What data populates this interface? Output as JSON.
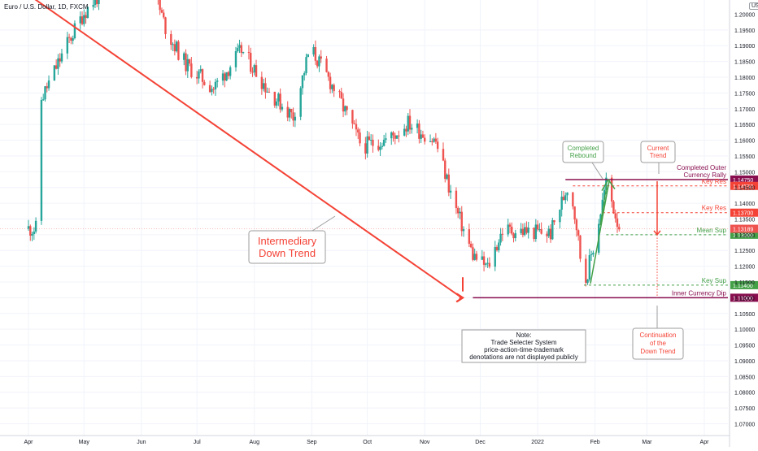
{
  "header": {
    "symbol_title": "Euro / U.S. Dollar, 1D, FXCM",
    "currency": "USD"
  },
  "chart_data": {
    "type": "candlestick",
    "ylim": [
      1.066,
      1.2045
    ],
    "y_ticks": [
      "1.19500",
      "1.19000",
      "1.18500",
      "1.18000",
      "1.17500",
      "1.17000",
      "1.16500",
      "1.16000",
      "1.15500",
      "1.15000",
      "1.14500",
      "1.14000",
      "1.13500",
      "1.13000",
      "1.12500",
      "1.12000",
      "1.11500",
      "1.11000",
      "1.10500",
      "1.10000",
      "1.09500",
      "1.09000",
      "1.08500",
      "1.08000",
      "1.07500",
      "1.07000"
    ],
    "y_tick_values": [
      1.195,
      1.19,
      1.185,
      1.18,
      1.175,
      1.17,
      1.165,
      1.16,
      1.155,
      1.15,
      1.145,
      1.14,
      1.135,
      1.13,
      1.125,
      1.12,
      1.115,
      1.11,
      1.105,
      1.1,
      1.095,
      1.09,
      1.085,
      1.08,
      1.075,
      1.07
    ],
    "top_tick": "1.20000",
    "x_ticks": [
      "Apr",
      "May",
      "Jun",
      "Jul",
      "Aug",
      "Sep",
      "Oct",
      "Nov",
      "Dec",
      "2022",
      "Feb",
      "Mar",
      "Apr"
    ],
    "x_tick_days": [
      0,
      30,
      61,
      91,
      122,
      153,
      183,
      214,
      244,
      275,
      306,
      334,
      365
    ],
    "last_day": 320,
    "horizontal_levels": [
      {
        "name": "completed-outer-rally",
        "price": 1.1475,
        "label": "Completed Outer\nCurrency Rally",
        "badge": "1.14750",
        "color": "#880e4f",
        "style": "solid"
      },
      {
        "name": "key-res-upper",
        "price": 1.1455,
        "label": "Key Res",
        "badge": "1.14550",
        "color": "#f44336",
        "style": "dashed"
      },
      {
        "name": "key-res",
        "price": 1.137,
        "label": "Key Res",
        "badge": "1.13700",
        "color": "#f44336",
        "style": "dashed"
      },
      {
        "name": "mean-sup",
        "price": 1.13,
        "label": "Mean Sup",
        "badge": "1.13000",
        "color": "#43a047",
        "style": "dashed"
      },
      {
        "name": "key-sup",
        "price": 1.114,
        "label": "Key Sup",
        "badge": "1.11400",
        "color": "#43a047",
        "style": "dashed"
      },
      {
        "name": "inner-currency-dip",
        "price": 1.11,
        "label": "Inner Currency Dip",
        "badge": "1.11000",
        "color": "#880e4f",
        "style": "solid"
      }
    ],
    "last_price": {
      "price": 1.13189,
      "badge": "1.13189",
      "color": "#ef5350"
    },
    "annotations": {
      "intermediary": "Intermediary\nDown Trend",
      "completed_rebound": "Completed\nRebound",
      "current_trend": "Current\nTrend",
      "continuation": "Continuation\nof the\nDown Trend",
      "note": "Note:\nTrade Selecter System\nprice-action-time-trademark\ndenotations are not displayed publicly"
    },
    "key_points": [
      {
        "day": 5,
        "price": 1.1705
      },
      {
        "day": 20,
        "price": 1.1895
      },
      {
        "day": 30,
        "price": 1.2005
      },
      {
        "day": 45,
        "price": 1.211
      },
      {
        "day": 65,
        "price": 1.212
      },
      {
        "day": 75,
        "price": 1.194
      },
      {
        "day": 85,
        "price": 1.184
      },
      {
        "day": 100,
        "price": 1.1765
      },
      {
        "day": 115,
        "price": 1.1885
      },
      {
        "day": 130,
        "price": 1.1755
      },
      {
        "day": 143,
        "price": 1.1675
      },
      {
        "day": 152,
        "price": 1.1895
      },
      {
        "day": 165,
        "price": 1.1765
      },
      {
        "day": 180,
        "price": 1.158
      },
      {
        "day": 195,
        "price": 1.1605
      },
      {
        "day": 205,
        "price": 1.1655
      },
      {
        "day": 220,
        "price": 1.1595
      },
      {
        "day": 230,
        "price": 1.1395
      },
      {
        "day": 240,
        "price": 1.1235
      },
      {
        "day": 248,
        "price": 1.1195
      },
      {
        "day": 256,
        "price": 1.1315
      },
      {
        "day": 270,
        "price": 1.131
      },
      {
        "day": 282,
        "price": 1.1305
      },
      {
        "day": 292,
        "price": 1.147
      },
      {
        "day": 296,
        "price": 1.133
      },
      {
        "day": 300,
        "price": 1.1135
      },
      {
        "day": 306,
        "price": 1.1285
      },
      {
        "day": 312,
        "price": 1.1465
      },
      {
        "day": 318,
        "price": 1.1345
      },
      {
        "day": 320,
        "price": 1.1319
      }
    ]
  }
}
